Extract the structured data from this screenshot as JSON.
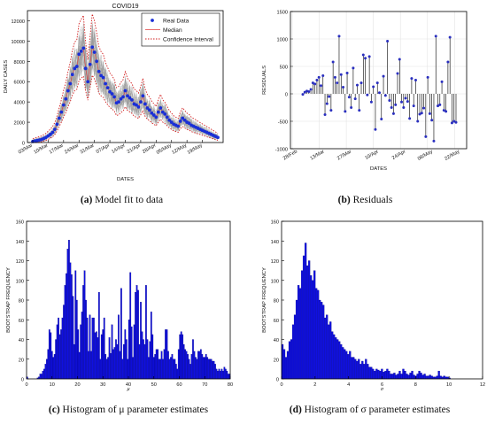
{
  "captions": [
    {
      "label": "(a)",
      "text": "Model fit to data"
    },
    {
      "label": "(b)",
      "text": "Residuals"
    },
    {
      "label": "(c)",
      "text": "Histogram of μ parameter estimates"
    },
    {
      "label": "(d)",
      "text": "Histogram of σ parameter estimates"
    }
  ],
  "colors": {
    "data": "#1a2fd6",
    "median": "#e23b3b",
    "ci": "#d21f1f",
    "ensemble": "#9a9a9a",
    "bar": "#1010e0",
    "stem": "#000000",
    "marker": "#2a2fbf"
  },
  "chart_data": [
    {
      "type": "line",
      "title": "COVID19",
      "xlabel": "DATES",
      "ylabel": "DAILY CASES",
      "ylim": [
        0,
        13000
      ],
      "yticks": [
        0,
        2000,
        4000,
        6000,
        8000,
        10000,
        12000
      ],
      "xticks": [
        "03/Mar",
        "10/Mar",
        "17/Mar",
        "24/Mar",
        "31/Mar",
        "07/Apr",
        "14/Apr",
        "21/Apr",
        "28/Apr",
        "05/May",
        "12/May",
        "19/May"
      ],
      "x_start": "03/Mar",
      "legend": {
        "placement": "top-right",
        "entries": [
          "Real Data",
          "Median",
          "Confidence Interval"
        ]
      },
      "series": [
        {
          "name": "Real Data",
          "values": [
            100,
            150,
            200,
            250,
            300,
            400,
            500,
            650,
            800,
            1000,
            1300,
            1800,
            2400,
            3000,
            3700,
            4300,
            5100,
            5800,
            6700,
            7300,
            7500,
            8700,
            9000,
            9300,
            7300,
            6000,
            7700,
            9400,
            8900,
            8000,
            7000,
            6600,
            6400,
            5800,
            5400,
            5000,
            4800,
            4500,
            3900,
            4000,
            4300,
            4500,
            5100,
            4600,
            4400,
            4200,
            3800,
            3700,
            3500,
            4000,
            4600,
            3800,
            3400,
            3200,
            2900,
            2700,
            2500,
            3000,
            3400,
            3000,
            2800,
            2500,
            2200,
            2000,
            1800,
            1700,
            1600,
            2100,
            2400,
            2200,
            2000,
            1900,
            1700,
            1600,
            1500,
            1400,
            1300,
            1200,
            1100,
            1000,
            900,
            800,
            700,
            600,
            500
          ]
        }
      ]
    },
    {
      "type": "scatter",
      "title": "",
      "xlabel": "DATES",
      "ylabel": "RESIDUALS",
      "ylim": [
        -1000,
        1500
      ],
      "yticks": [
        -1000,
        -500,
        0,
        500,
        1000,
        1500
      ],
      "xticks": [
        "28/Feb",
        "13/Mar",
        "27/Mar",
        "10/Apr",
        "24/Apr",
        "08/May",
        "22/May"
      ],
      "grid": true,
      "values": [
        -10,
        30,
        50,
        40,
        80,
        200,
        180,
        250,
        300,
        150,
        330,
        -380,
        -180,
        -50,
        -300,
        580,
        300,
        200,
        1050,
        350,
        120,
        -320,
        380,
        -60,
        -250,
        470,
        -90,
        160,
        -300,
        200,
        710,
        650,
        -20,
        680,
        -150,
        130,
        -650,
        200,
        20,
        -460,
        320,
        -30,
        960,
        -120,
        -250,
        -360,
        -200,
        370,
        630,
        -150,
        -250,
        -80,
        -140,
        -450,
        280,
        -220,
        250,
        -500,
        -370,
        -350,
        -260,
        -780,
        300,
        -360,
        -480,
        -860,
        1050,
        -220,
        -200,
        220,
        -300,
        -320,
        580,
        1030,
        -530,
        -500,
        -520
      ]
    },
    {
      "type": "bar",
      "title": "",
      "xlabel": "μ",
      "ylabel": "BOOTSTRAP FREQUENCY",
      "ylim": [
        0,
        160
      ],
      "yticks": [
        0,
        20,
        40,
        60,
        80,
        100,
        120,
        140,
        160
      ],
      "xlim": [
        0,
        80
      ],
      "xticks": [
        0,
        10,
        20,
        30,
        40,
        50,
        60,
        70,
        80
      ],
      "values": [
        2,
        0,
        0,
        0,
        0,
        0,
        0,
        0,
        1,
        2,
        5,
        5,
        8,
        10,
        15,
        20,
        30,
        50,
        47,
        28,
        22,
        25,
        40,
        55,
        62,
        45,
        50,
        62,
        75,
        95,
        107,
        132,
        141,
        118,
        106,
        84,
        35,
        110,
        80,
        50,
        27,
        55,
        68,
        95,
        110,
        80,
        62,
        28,
        65,
        28,
        62,
        62,
        47,
        48,
        42,
        88,
        20,
        45,
        50,
        62,
        25,
        20,
        22,
        42,
        26,
        55,
        30,
        32,
        40,
        35,
        65,
        28,
        92,
        20,
        35,
        50,
        40,
        20,
        60,
        108,
        53,
        22,
        55,
        88,
        95,
        90,
        35,
        78,
        48,
        40,
        35,
        95,
        40,
        22,
        38,
        68,
        45,
        22,
        25,
        30,
        30,
        20,
        20,
        28,
        20,
        30,
        50,
        50,
        28,
        20,
        22,
        25,
        20,
        20,
        15,
        10,
        30,
        45,
        48,
        45,
        35,
        30,
        28,
        25,
        20,
        15,
        25,
        40,
        28,
        22,
        20,
        28,
        28,
        30,
        25,
        22,
        22,
        25,
        22,
        20,
        20,
        20,
        18,
        18,
        15,
        10,
        8,
        10,
        8,
        10,
        8,
        12,
        10,
        8,
        5,
        5
      ]
    },
    {
      "type": "bar",
      "title": "",
      "xlabel": "σ",
      "ylabel": "BOOTSTRAP FREQUENCY",
      "ylim": [
        0,
        160
      ],
      "yticks": [
        0,
        20,
        40,
        60,
        80,
        100,
        120,
        140,
        160
      ],
      "xlim": [
        0,
        12
      ],
      "xticks": [
        0,
        2,
        4,
        6,
        8,
        10,
        12
      ],
      "values": [
        35,
        30,
        22,
        28,
        38,
        40,
        55,
        65,
        80,
        95,
        92,
        110,
        125,
        138,
        115,
        120,
        105,
        100,
        110,
        92,
        90,
        80,
        78,
        75,
        62,
        65,
        55,
        58,
        48,
        45,
        42,
        40,
        38,
        35,
        32,
        30,
        28,
        25,
        28,
        22,
        22,
        20,
        18,
        20,
        15,
        18,
        15,
        20,
        15,
        12,
        12,
        10,
        8,
        10,
        9,
        8,
        10,
        7,
        8,
        10,
        8,
        5,
        5,
        6,
        4,
        5,
        8,
        5,
        10,
        8,
        5,
        4,
        6,
        8,
        4,
        3,
        5,
        8,
        6,
        4,
        5,
        3,
        3,
        4,
        3,
        2,
        2,
        3,
        8,
        3,
        2,
        3,
        2,
        2,
        1
      ]
    }
  ]
}
